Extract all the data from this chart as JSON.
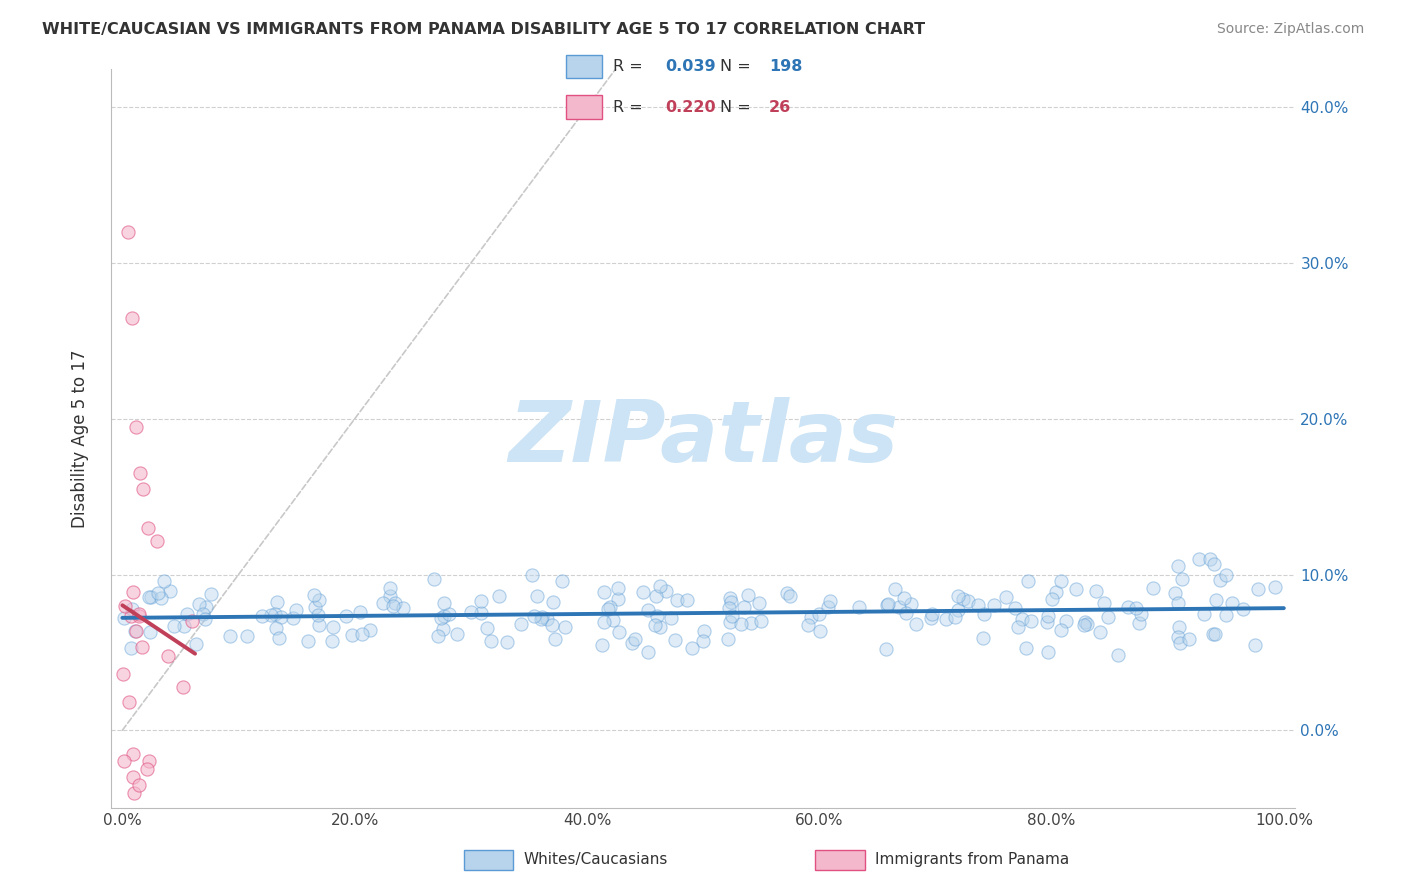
{
  "title": "WHITE/CAUCASIAN VS IMMIGRANTS FROM PANAMA DISABILITY AGE 5 TO 17 CORRELATION CHART",
  "source": "Source: ZipAtlas.com",
  "xlabel": "",
  "ylabel": "Disability Age 5 to 17",
  "series1": {
    "label": "Whites/Caucasians",
    "R": 0.039,
    "N": 198,
    "color": "#b8d4ec",
    "edge_color": "#5b9bd5",
    "trend_color": "#2e75b6"
  },
  "series2": {
    "label": "Immigrants from Panama",
    "R": 0.22,
    "N": 26,
    "color": "#f4b8cc",
    "edge_color": "#e05080",
    "trend_color": "#c0405a"
  },
  "xlim": [
    -0.01,
    1.01
  ],
  "ylim": [
    -0.05,
    0.425
  ],
  "yticks": [
    0.0,
    0.1,
    0.2,
    0.3,
    0.4
  ],
  "ytick_labels": [
    "0.0%",
    "10.0%",
    "20.0%",
    "30.0%",
    "40.0%"
  ],
  "xticks": [
    0.0,
    0.2,
    0.4,
    0.6,
    0.8,
    1.0
  ],
  "xtick_labels": [
    "0.0%",
    "20.0%",
    "40.0%",
    "60.0%",
    "80.0%",
    "100.0%"
  ],
  "watermark": "ZIPatlas",
  "watermark_color": "#cce4f5",
  "background_color": "#ffffff",
  "grid_color": "#d0d0d0",
  "marker_size": 90,
  "alpha_scatter": 0.45
}
